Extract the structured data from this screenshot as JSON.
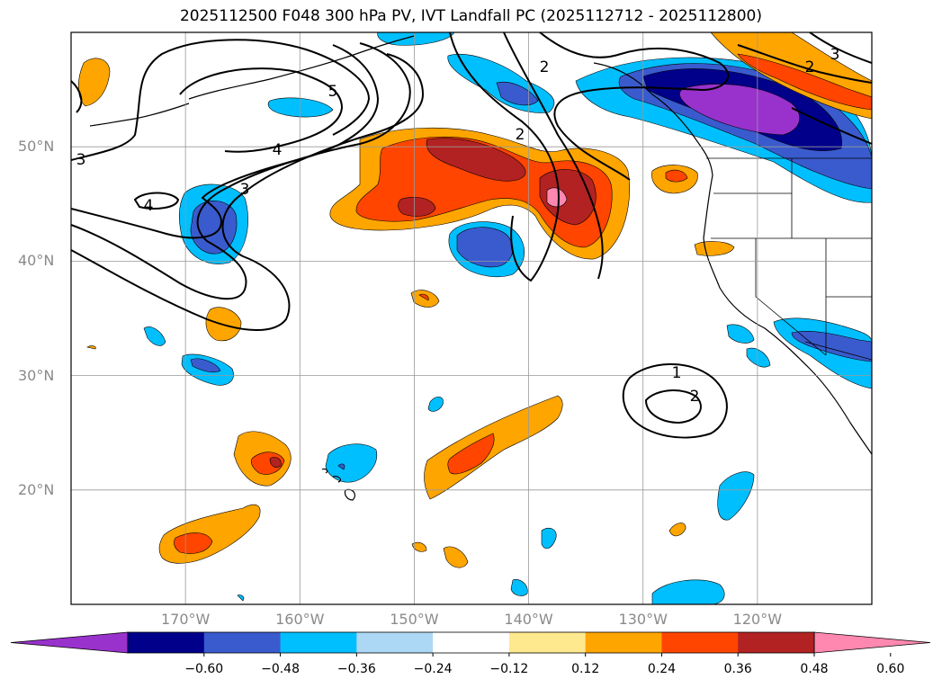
{
  "title": "2025112500 F048 300 hPa PV, IVT Landfall PC (2025112712 - 2025112800)",
  "map": {
    "lat_ticks": [
      {
        "value": 50,
        "label": "50°N"
      },
      {
        "value": 40,
        "label": "40°N"
      },
      {
        "value": 30,
        "label": "30°N"
      },
      {
        "value": 20,
        "label": "20°N"
      }
    ],
    "lon_ticks": [
      {
        "value": -170,
        "label": "170°W"
      },
      {
        "value": -160,
        "label": "160°W"
      },
      {
        "value": -150,
        "label": "150°W"
      },
      {
        "value": -140,
        "label": "140°W"
      },
      {
        "value": -130,
        "label": "130°W"
      },
      {
        "value": -120,
        "label": "120°W"
      }
    ],
    "extent": {
      "lon_min": -180,
      "lon_max": -110,
      "lat_min": 10,
      "lat_max": 60
    },
    "pv_contour_labels": [
      "1",
      "2",
      "2",
      "2",
      "2",
      "3",
      "3",
      "3",
      "4",
      "4",
      "5"
    ]
  },
  "colorbar": {
    "colors": [
      "#9932cc",
      "#00008b",
      "#3a5bcd",
      "#00bfff",
      "#add8f5",
      "#ffffff",
      "#ffe98f",
      "#ffa500",
      "#ff4500",
      "#b22222",
      "#ff88b0"
    ],
    "ticks": [
      "−0.60",
      "−0.48",
      "−0.36",
      "−0.24",
      "−0.12",
      "0.12",
      "0.24",
      "0.36",
      "0.48",
      "0.60"
    ]
  }
}
